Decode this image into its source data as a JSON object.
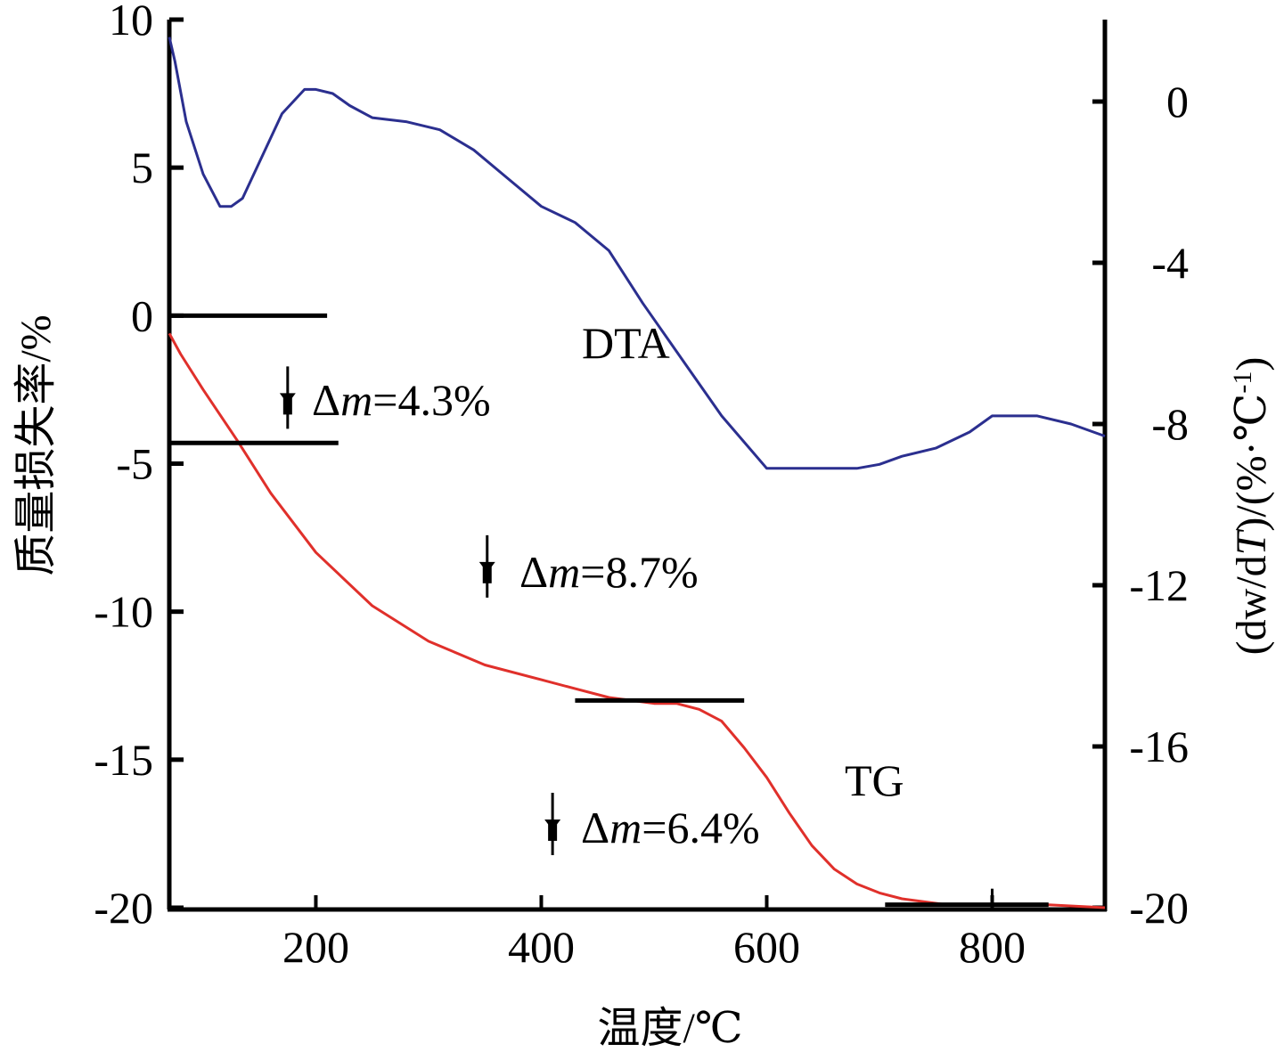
{
  "chart_data": {
    "type": "line",
    "x_axis": {
      "label_text": "温度/",
      "label_unit": "℃",
      "lim": [
        70,
        900
      ],
      "ticks": [
        200,
        400,
        600,
        800
      ],
      "tick_labels": [
        "200",
        "400",
        "600",
        "800"
      ]
    },
    "y_left": {
      "label": "质量损失率/%",
      "lim": [
        -20,
        10
      ],
      "ticks": [
        10,
        5,
        0,
        -5,
        -10,
        -15,
        -20
      ],
      "tick_labels": [
        "10",
        "5",
        "0",
        "-5",
        "-10",
        "-15",
        "-20"
      ]
    },
    "y_right": {
      "label_prefix": "(dw/d",
      "label_T": "T",
      "label_mid": ")/(%·℃",
      "label_sup": "-1",
      "label_suffix": ")",
      "lim": [
        -20,
        2
      ],
      "ticks": [
        0,
        -4,
        -8,
        -12,
        -16,
        -20
      ],
      "tick_labels": [
        "0",
        "-4",
        "-8",
        "-12",
        "-16",
        "-20"
      ]
    },
    "series": [
      {
        "name": "DTA",
        "axis": "right",
        "color": "#2b2f8f",
        "x": [
          70,
          75,
          85,
          100,
          115,
          125,
          135,
          150,
          170,
          190,
          200,
          215,
          230,
          250,
          280,
          310,
          340,
          370,
          400,
          430,
          460,
          490,
          520,
          560,
          600,
          640,
          660,
          680,
          700,
          720,
          750,
          780,
          800,
          840,
          870,
          900
        ],
        "y": [
          1.6,
          1.0,
          -0.5,
          -1.8,
          -2.6,
          -2.6,
          -2.4,
          -1.5,
          -0.3,
          0.3,
          0.3,
          0.2,
          -0.1,
          -0.4,
          -0.5,
          -0.7,
          -1.2,
          -1.9,
          -2.6,
          -3.0,
          -3.7,
          -5.0,
          -6.2,
          -7.8,
          -9.1,
          -9.1,
          -9.1,
          -9.1,
          -9.0,
          -8.8,
          -8.6,
          -8.2,
          -7.8,
          -7.8,
          -8.0,
          -8.3
        ]
      },
      {
        "name": "TG",
        "axis": "left",
        "color": "#e0302b",
        "x": [
          70,
          80,
          100,
          130,
          160,
          200,
          250,
          300,
          350,
          400,
          430,
          460,
          500,
          520,
          540,
          560,
          580,
          600,
          620,
          640,
          660,
          680,
          700,
          720,
          740,
          760,
          780,
          800,
          850,
          900
        ],
        "y": [
          -0.6,
          -1.3,
          -2.5,
          -4.2,
          -6.0,
          -8.0,
          -9.8,
          -11.0,
          -11.8,
          -12.3,
          -12.6,
          -12.9,
          -13.1,
          -13.1,
          -13.3,
          -13.7,
          -14.6,
          -15.6,
          -16.8,
          -17.9,
          -18.7,
          -19.2,
          -19.5,
          -19.7,
          -19.8,
          -19.9,
          -19.9,
          -19.9,
          -19.9,
          -20.0
        ]
      }
    ],
    "step_lines": [
      {
        "y": 0,
        "x": [
          70,
          210
        ]
      },
      {
        "y": -4.3,
        "x": [
          70,
          220
        ]
      },
      {
        "y": -13.0,
        "x": [
          430,
          580
        ]
      },
      {
        "y": -19.9,
        "x": [
          705,
          850
        ]
      }
    ],
    "markers": [
      {
        "x": 175,
        "y": -2.8
      },
      {
        "x": 352,
        "y": -8.5
      },
      {
        "x": 410,
        "y": -17.2
      }
    ],
    "annotations": [
      {
        "delta": "Δ",
        "m": "m",
        "value": "=4.3%"
      },
      {
        "delta": "Δ",
        "m": "m",
        "value": "=8.7%"
      },
      {
        "delta": "Δ",
        "m": "m",
        "value": "=6.4%"
      }
    ],
    "curve_labels": [
      "DTA",
      "TG"
    ],
    "grid": false
  }
}
